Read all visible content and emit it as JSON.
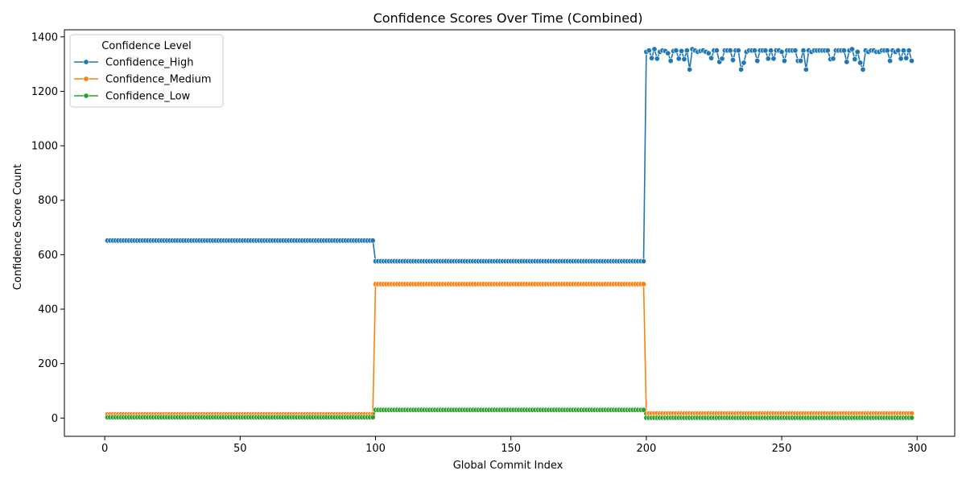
{
  "chart_data": {
    "type": "line",
    "title": "Confidence Scores Over Time (Combined)",
    "xlabel": "Global Commit Index",
    "ylabel": "Confidence Score Count",
    "xlim": [
      -14.9,
      313.9
    ],
    "ylim": [
      -67,
      1426
    ],
    "xticks": [
      0,
      50,
      100,
      150,
      200,
      250,
      300
    ],
    "yticks": [
      0,
      200,
      400,
      600,
      800,
      1000,
      1200,
      1400
    ],
    "grid": false,
    "legend": {
      "title": "Confidence Level",
      "position": "top-left"
    },
    "series": [
      {
        "name": "Confidence_High",
        "color": "#1f77b4",
        "segments": [
          {
            "x_start": 1,
            "x_end": 99,
            "value": 652
          },
          {
            "x_start": 100,
            "x_end": 199,
            "value": 576
          }
        ],
        "tail": {
          "x_start": 200,
          "values": [
            1345,
            1350,
            1322,
            1355,
            1320,
            1345,
            1350,
            1348,
            1340,
            1312,
            1348,
            1350,
            1320,
            1348,
            1318,
            1350,
            1280,
            1355,
            1350,
            1345,
            1348,
            1350,
            1345,
            1340,
            1322,
            1350,
            1350,
            1308,
            1320,
            1350,
            1350,
            1350,
            1315,
            1350,
            1350,
            1280,
            1305,
            1345,
            1350,
            1350,
            1350,
            1312,
            1350,
            1350,
            1350,
            1320,
            1350,
            1320,
            1350,
            1350,
            1345,
            1312,
            1350,
            1350,
            1350,
            1350,
            1312,
            1312,
            1350,
            1280,
            1350,
            1345,
            1350,
            1350,
            1350,
            1350,
            1350,
            1350,
            1318,
            1320,
            1350,
            1350,
            1350,
            1350,
            1308,
            1350,
            1355,
            1318,
            1345,
            1305,
            1280,
            1350,
            1345,
            1350,
            1350,
            1345,
            1345,
            1350,
            1350,
            1350,
            1312,
            1350,
            1345,
            1350,
            1320,
            1350,
            1322,
            1350,
            1312
          ]
        }
      },
      {
        "name": "Confidence_Medium",
        "color": "#ff7f0e",
        "segments": [
          {
            "x_start": 1,
            "x_end": 99,
            "value": 14
          },
          {
            "x_start": 100,
            "x_end": 199,
            "value": 492
          },
          {
            "x_start": 200,
            "x_end": 298,
            "value": 17
          }
        ]
      },
      {
        "name": "Confidence_Low",
        "color": "#2ca02c",
        "segments": [
          {
            "x_start": 1,
            "x_end": 99,
            "value": 3
          },
          {
            "x_start": 100,
            "x_end": 199,
            "value": 30
          },
          {
            "x_start": 200,
            "x_end": 298,
            "value": 1
          }
        ]
      }
    ]
  }
}
